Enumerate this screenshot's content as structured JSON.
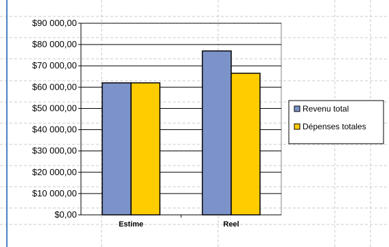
{
  "chart_data": {
    "type": "bar",
    "title": "",
    "xlabel": "",
    "ylabel": "",
    "categories": [
      "Estime",
      "Reel"
    ],
    "series": [
      {
        "name": "Revenu total",
        "values": [
          62000,
          77000
        ],
        "color": "#7b93c9"
      },
      {
        "name": "Dépenses totales",
        "values": [
          62000,
          66500
        ],
        "color": "#ffcc00"
      }
    ],
    "ylim": [
      0,
      90000
    ],
    "yticks": [
      0,
      10000,
      20000,
      30000,
      40000,
      50000,
      60000,
      70000,
      80000,
      90000
    ],
    "ytick_labels": [
      "$0,00",
      "$10 000,00",
      "$20 000,00",
      "$30 000,00",
      "$40 000,00",
      "$50 000,00",
      "$60 000,00",
      "$70 000,00",
      "$80 000,00",
      "$90 000,00"
    ],
    "grid": true,
    "legend": "right"
  },
  "colors": {
    "bar_outline": "#000000",
    "gridline": "#000000",
    "sheet_grid": "#c8c8c8",
    "sheet_edge": "#4a7fc1"
  }
}
